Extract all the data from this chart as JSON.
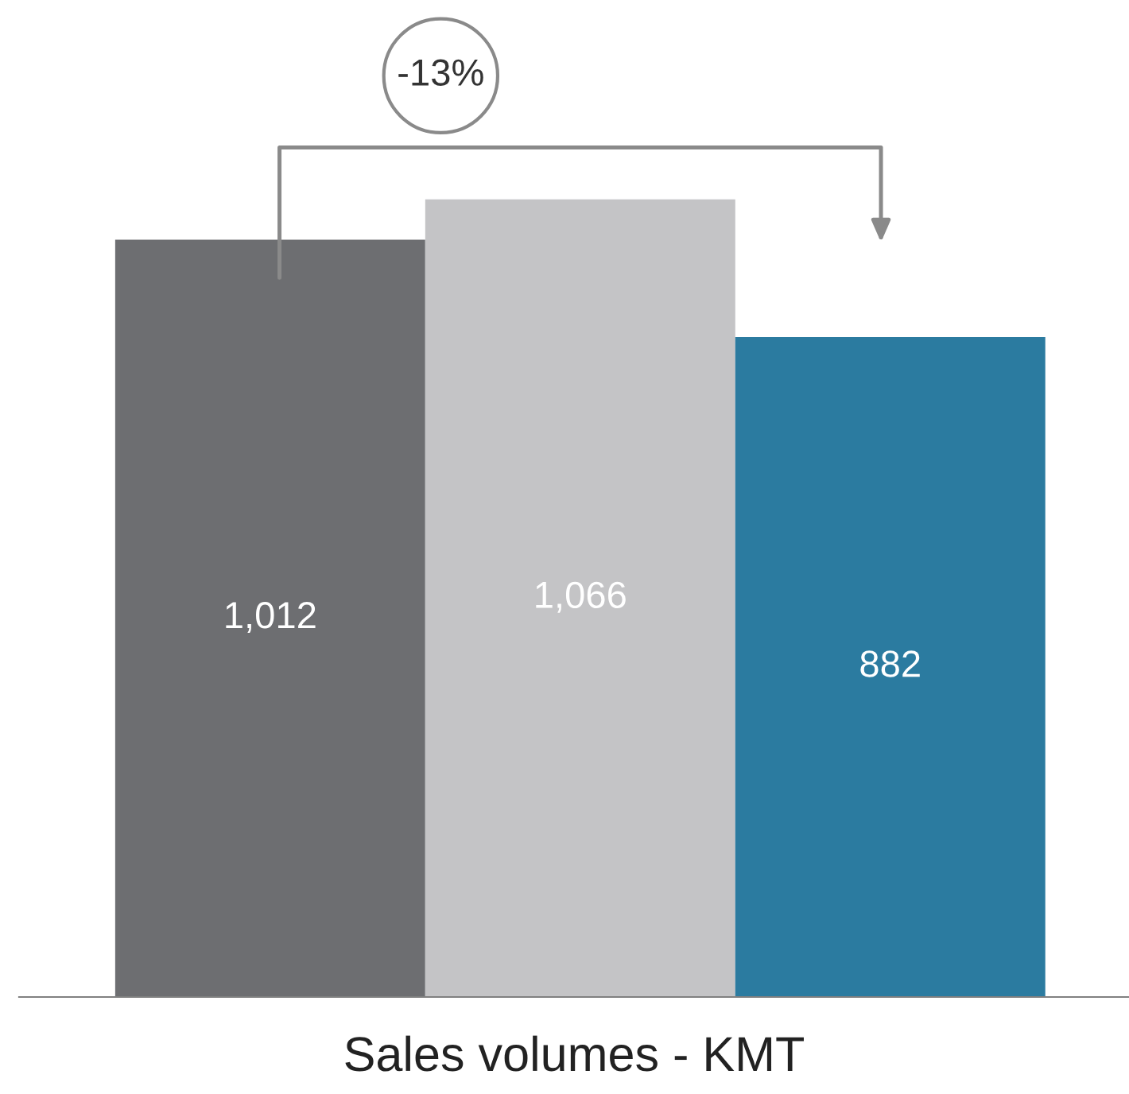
{
  "chart_data": {
    "type": "bar",
    "categories": [
      null,
      null,
      null
    ],
    "values": [
      1012,
      1066,
      882
    ],
    "colors": [
      "#6d6e71",
      "#c4c4c6",
      "#2b7ba0"
    ],
    "value_labels": [
      "1,012",
      "1,066",
      "882"
    ],
    "xlabel": "Sales volumes - KMT",
    "annotations": [
      "-13%"
    ],
    "grid": false
  }
}
